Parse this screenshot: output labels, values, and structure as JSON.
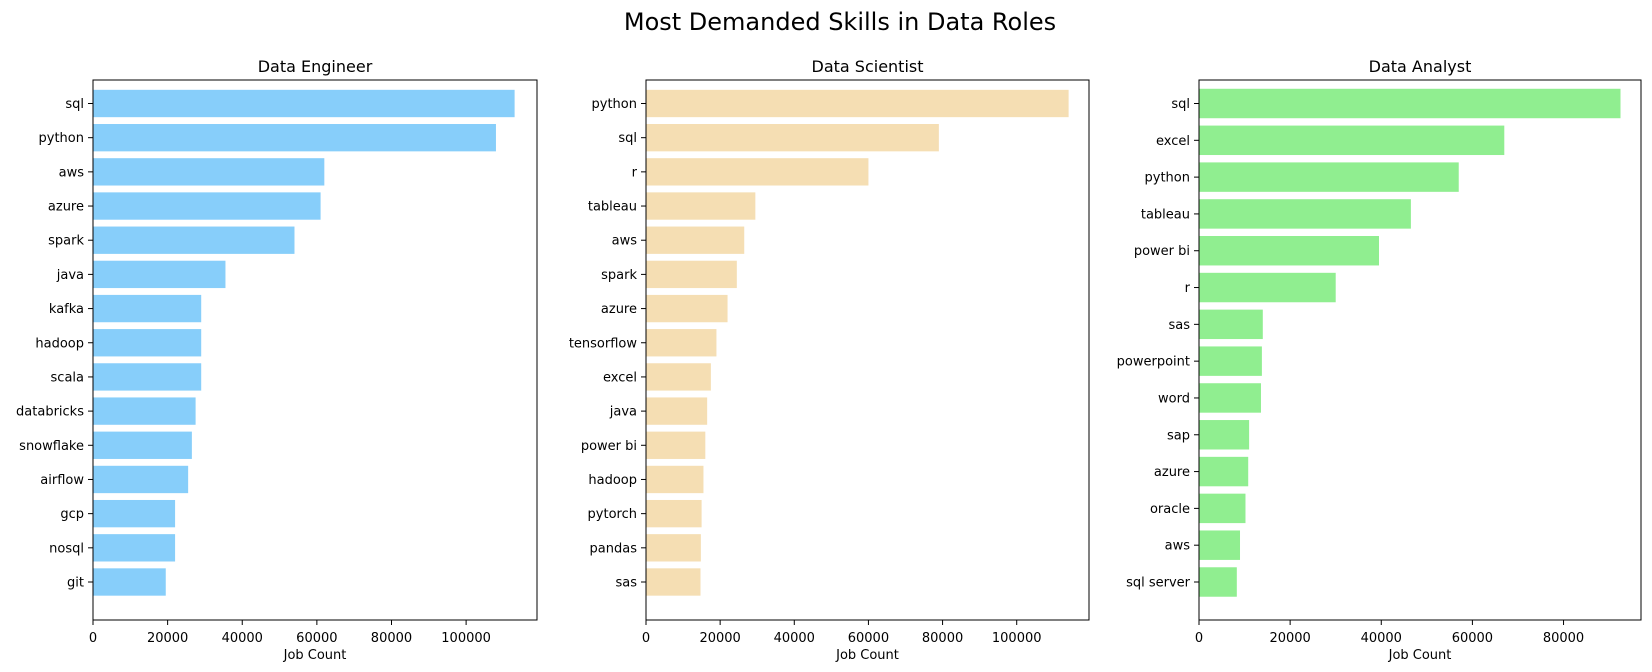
{
  "figure": {
    "suptitle": "Most Demanded Skills in Data Roles"
  },
  "chart_data": [
    {
      "type": "bar",
      "orientation": "horizontal",
      "title": "Data Engineer",
      "xlabel": "Job Count",
      "ylabel": "",
      "color": "#87cefa",
      "xlim": [
        0,
        119000
      ],
      "xticks": [
        0,
        20000,
        40000,
        60000,
        80000,
        100000
      ],
      "grid": false,
      "categories": [
        "sql",
        "python",
        "aws",
        "azure",
        "spark",
        "java",
        "kafka",
        "hadoop",
        "scala",
        "databricks",
        "snowflake",
        "airflow",
        "gcp",
        "nosql",
        "git"
      ],
      "values": [
        113000,
        108000,
        62000,
        61000,
        54000,
        35500,
        29000,
        29000,
        29000,
        27500,
        26500,
        25500,
        22000,
        22000,
        19500
      ]
    },
    {
      "type": "bar",
      "orientation": "horizontal",
      "title": "Data Scientist",
      "xlabel": "Job Count",
      "ylabel": "",
      "color": "#f5deb3",
      "xlim": [
        0,
        119500
      ],
      "xticks": [
        0,
        20000,
        40000,
        60000,
        80000,
        100000
      ],
      "grid": false,
      "categories": [
        "python",
        "sql",
        "r",
        "tableau",
        "aws",
        "spark",
        "azure",
        "tensorflow",
        "excel",
        "java",
        "power bi",
        "hadoop",
        "pytorch",
        "pandas",
        "sas"
      ],
      "values": [
        114000,
        79000,
        60000,
        29500,
        26500,
        24500,
        22000,
        19000,
        17500,
        16500,
        16000,
        15500,
        15000,
        14800,
        14700
      ]
    },
    {
      "type": "bar",
      "orientation": "horizontal",
      "title": "Data Analyst",
      "xlabel": "Job Count",
      "ylabel": "",
      "color": "#90ee90",
      "xlim": [
        0,
        97000
      ],
      "xticks": [
        0,
        20000,
        40000,
        60000,
        80000
      ],
      "grid": false,
      "categories": [
        "sql",
        "excel",
        "python",
        "tableau",
        "power bi",
        "r",
        "sas",
        "powerpoint",
        "word",
        "sap",
        "azure",
        "oracle",
        "aws",
        "sql server"
      ],
      "values": [
        92500,
        67000,
        57000,
        46500,
        39500,
        30000,
        14000,
        13800,
        13600,
        11000,
        10800,
        10200,
        9000,
        8300
      ]
    }
  ]
}
